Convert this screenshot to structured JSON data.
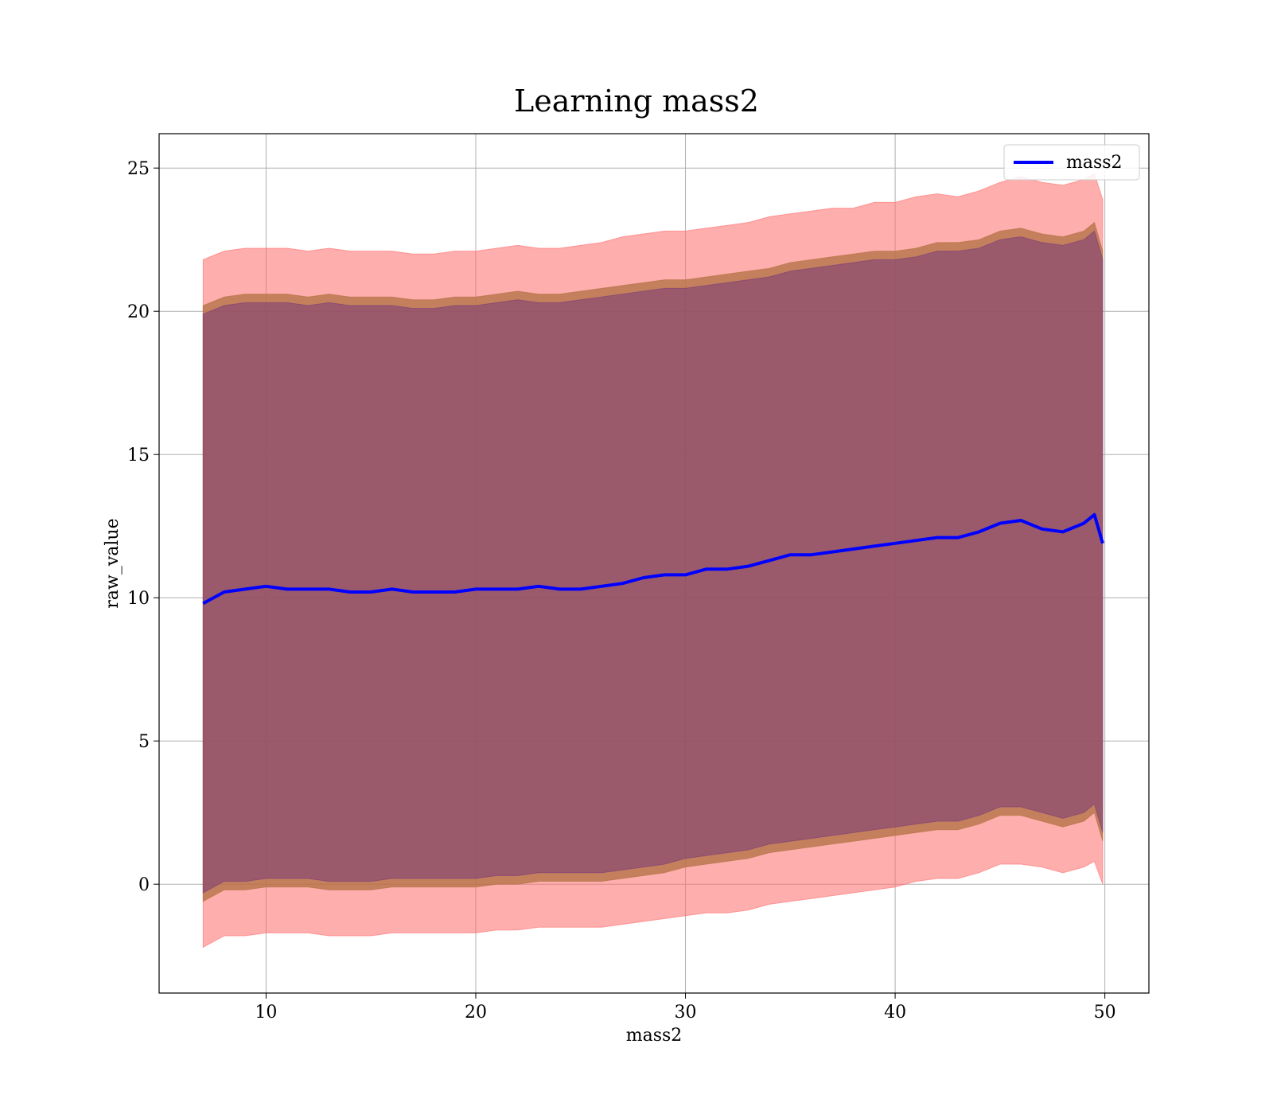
{
  "chart_data": {
    "type": "line",
    "title": "Learning mass2",
    "xlabel": "mass2",
    "ylabel": "raw_value",
    "xlim": [
      4.9,
      52.1
    ],
    "ylim": [
      -3.8,
      26.2
    ],
    "xticks": [
      10,
      20,
      30,
      40,
      50
    ],
    "yticks": [
      0,
      5,
      10,
      15,
      20,
      25
    ],
    "grid": true,
    "legend": {
      "position": "top-right",
      "entries": [
        "mass2"
      ]
    },
    "colors": {
      "line": "#0000ff",
      "band_outer": "#ff6b6b",
      "band_mid": "#b07040",
      "band_inner": "#7a3b7a",
      "grid": "#b0b0b0"
    },
    "x": [
      7,
      8,
      9,
      10,
      11,
      12,
      13,
      14,
      15,
      16,
      17,
      18,
      19,
      20,
      21,
      22,
      23,
      24,
      25,
      26,
      27,
      28,
      29,
      30,
      31,
      32,
      33,
      34,
      35,
      36,
      37,
      38,
      39,
      40,
      41,
      42,
      43,
      44,
      45,
      46,
      47,
      48,
      49,
      49.5,
      49.9
    ],
    "series": [
      {
        "name": "mass2",
        "values": [
          9.8,
          10.2,
          10.3,
          10.4,
          10.3,
          10.3,
          10.3,
          10.2,
          10.2,
          10.3,
          10.2,
          10.2,
          10.2,
          10.3,
          10.3,
          10.3,
          10.4,
          10.3,
          10.3,
          10.4,
          10.5,
          10.7,
          10.8,
          10.8,
          11.0,
          11.0,
          11.1,
          11.3,
          11.5,
          11.5,
          11.6,
          11.7,
          11.8,
          11.9,
          12.0,
          12.1,
          12.1,
          12.3,
          12.6,
          12.7,
          12.4,
          12.3,
          12.6,
          12.9,
          11.9
        ]
      }
    ],
    "bands": [
      {
        "lower": [
          -2.2,
          -1.8,
          -1.8,
          -1.7,
          -1.7,
          -1.7,
          -1.8,
          -1.8,
          -1.8,
          -1.7,
          -1.7,
          -1.7,
          -1.7,
          -1.7,
          -1.6,
          -1.6,
          -1.5,
          -1.5,
          -1.5,
          -1.5,
          -1.4,
          -1.3,
          -1.2,
          -1.1,
          -1.0,
          -1.0,
          -0.9,
          -0.7,
          -0.6,
          -0.5,
          -0.4,
          -0.3,
          -0.2,
          -0.1,
          0.1,
          0.2,
          0.2,
          0.4,
          0.7,
          0.7,
          0.6,
          0.4,
          0.6,
          0.8,
          0.0
        ],
        "upper": [
          21.8,
          22.1,
          22.2,
          22.2,
          22.2,
          22.1,
          22.2,
          22.1,
          22.1,
          22.1,
          22.0,
          22.0,
          22.1,
          22.1,
          22.2,
          22.3,
          22.2,
          22.2,
          22.3,
          22.4,
          22.6,
          22.7,
          22.8,
          22.8,
          22.9,
          23.0,
          23.1,
          23.3,
          23.4,
          23.5,
          23.6,
          23.6,
          23.8,
          23.8,
          24.0,
          24.1,
          24.0,
          24.2,
          24.5,
          24.7,
          24.5,
          24.4,
          24.6,
          24.8,
          23.9
        ]
      },
      {
        "lower": [
          -0.6,
          -0.2,
          -0.2,
          -0.1,
          -0.1,
          -0.1,
          -0.2,
          -0.2,
          -0.2,
          -0.1,
          -0.1,
          -0.1,
          -0.1,
          -0.1,
          0.0,
          0.0,
          0.1,
          0.1,
          0.1,
          0.1,
          0.2,
          0.3,
          0.4,
          0.6,
          0.7,
          0.8,
          0.9,
          1.1,
          1.2,
          1.3,
          1.4,
          1.5,
          1.6,
          1.7,
          1.8,
          1.9,
          1.9,
          2.1,
          2.4,
          2.4,
          2.2,
          2.0,
          2.2,
          2.5,
          1.5
        ],
        "upper": [
          20.2,
          20.5,
          20.6,
          20.6,
          20.6,
          20.5,
          20.6,
          20.5,
          20.5,
          20.5,
          20.4,
          20.4,
          20.5,
          20.5,
          20.6,
          20.7,
          20.6,
          20.6,
          20.7,
          20.8,
          20.9,
          21.0,
          21.1,
          21.1,
          21.2,
          21.3,
          21.4,
          21.5,
          21.7,
          21.8,
          21.9,
          22.0,
          22.1,
          22.1,
          22.2,
          22.4,
          22.4,
          22.5,
          22.8,
          22.9,
          22.7,
          22.6,
          22.8,
          23.1,
          22.1
        ]
      },
      {
        "lower": [
          -0.3,
          0.1,
          0.1,
          0.2,
          0.2,
          0.2,
          0.1,
          0.1,
          0.1,
          0.2,
          0.2,
          0.2,
          0.2,
          0.2,
          0.3,
          0.3,
          0.4,
          0.4,
          0.4,
          0.4,
          0.5,
          0.6,
          0.7,
          0.9,
          1.0,
          1.1,
          1.2,
          1.4,
          1.5,
          1.6,
          1.7,
          1.8,
          1.9,
          2.0,
          2.1,
          2.2,
          2.2,
          2.4,
          2.7,
          2.7,
          2.5,
          2.3,
          2.5,
          2.8,
          1.8
        ],
        "upper": [
          19.9,
          20.2,
          20.3,
          20.3,
          20.3,
          20.2,
          20.3,
          20.2,
          20.2,
          20.2,
          20.1,
          20.1,
          20.2,
          20.2,
          20.3,
          20.4,
          20.3,
          20.3,
          20.4,
          20.5,
          20.6,
          20.7,
          20.8,
          20.8,
          20.9,
          21.0,
          21.1,
          21.2,
          21.4,
          21.5,
          21.6,
          21.7,
          21.8,
          21.8,
          21.9,
          22.1,
          22.1,
          22.2,
          22.5,
          22.6,
          22.4,
          22.3,
          22.5,
          22.8,
          21.8
        ]
      }
    ]
  }
}
